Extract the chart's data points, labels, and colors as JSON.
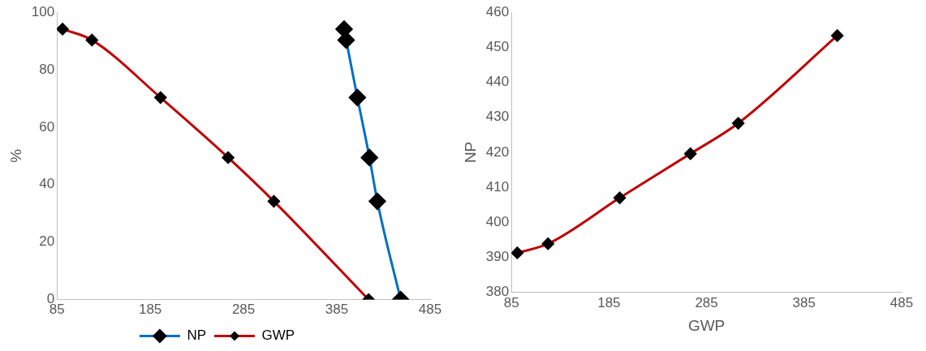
{
  "chart_data": [
    {
      "type": "line",
      "ylabel": "%",
      "xlim": [
        85,
        485
      ],
      "xticks": [
        85,
        185,
        285,
        385,
        485
      ],
      "ylim": [
        0,
        100
      ],
      "yticks": [
        0,
        20,
        40,
        60,
        80,
        100
      ],
      "grid": false,
      "legend": "bottom",
      "marker": "diamond",
      "series": [
        {
          "name": "NP",
          "color": "#0070c0",
          "x": [
            392.8,
            395,
            407,
            420,
            428.4,
            453.4
          ],
          "values": [
            94.1,
            90.3,
            70.3,
            49.4,
            34.2,
            0
          ]
        },
        {
          "name": "GWP",
          "color": "#c00000",
          "x": [
            91,
            122.5,
            196,
            268.5,
            317.5,
            419
          ],
          "values": [
            94.1,
            90.3,
            70.3,
            49.4,
            34.2,
            0
          ]
        }
      ]
    },
    {
      "type": "line",
      "xlabel": "GWP",
      "ylabel": "NP",
      "xlim": [
        85,
        485
      ],
      "xticks": [
        85,
        185,
        285,
        385,
        485
      ],
      "ylim": [
        380,
        460
      ],
      "yticks": [
        380,
        390,
        400,
        410,
        420,
        430,
        440,
        450,
        460
      ],
      "grid": false,
      "legend": false,
      "marker": "diamond",
      "series": [
        {
          "color": "#c00000",
          "x": [
            91,
            122.5,
            196,
            268.5,
            317.5,
            419
          ],
          "values": [
            391.3,
            393.9,
            407,
            419.6,
            428.3,
            453.3
          ]
        }
      ]
    }
  ]
}
